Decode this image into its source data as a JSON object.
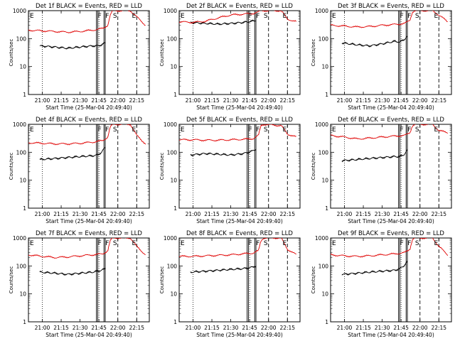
{
  "figure": {
    "ylabel": "Counts/sec",
    "xlabel": "Start Time (25-Mar-04 20:49:40)",
    "time_ticks": [
      "21:00",
      "21:15",
      "21:30",
      "21:45",
      "22:00",
      "22:15"
    ],
    "y_ticks": [
      "1",
      "10",
      "100",
      "1000"
    ],
    "marker_labels": [
      "F",
      "F",
      "S",
      "E"
    ],
    "colors": {
      "events": "#000000",
      "lld": "#e00000"
    }
  },
  "chart_data": [
    {
      "type": "line",
      "title": "Det 1f BLACK = Events, RED = LLD",
      "xlabel": "Start Time (25-Mar-04 20:49:40)",
      "ylabel": "Counts/sec",
      "ylim": [
        1,
        1000
      ],
      "yscale": "log",
      "series": [
        {
          "name": "Events",
          "color": "#000000",
          "x": [
            "20:58",
            "21:10",
            "21:20",
            "21:30",
            "21:40",
            "21:44",
            "21:47",
            "21:50"
          ],
          "values": [
            55,
            50,
            45,
            50,
            55,
            55,
            60,
            70
          ]
        },
        {
          "name": "LLD",
          "color": "#e00000",
          "x": [
            "20:49",
            "21:00",
            "21:10",
            "21:20",
            "21:30",
            "21:40",
            "21:48",
            "21:52",
            "21:54",
            "21:56",
            "22:10",
            "22:15",
            "22:22"
          ],
          "values": [
            200,
            190,
            180,
            170,
            180,
            200,
            230,
            300,
            700,
            1000,
            1000,
            600,
            300
          ]
        }
      ]
    },
    {
      "type": "line",
      "title": "Det 2f BLACK = Events, RED = LLD",
      "xlabel": "Start Time (25-Mar-04 20:49:40)",
      "ylabel": "Counts/sec",
      "ylim": [
        1,
        1000
      ],
      "yscale": "log",
      "series": [
        {
          "name": "Events",
          "color": "#000000",
          "x": [
            "20:58",
            "21:10",
            "21:20",
            "21:30",
            "21:40",
            "21:44",
            "21:47",
            "21:50"
          ],
          "values": [
            380,
            350,
            330,
            350,
            380,
            400,
            420,
            450
          ]
        },
        {
          "name": "LLD",
          "color": "#e00000",
          "x": [
            "20:49",
            "21:00",
            "21:10",
            "21:20",
            "21:30",
            "21:40",
            "21:48",
            "21:52",
            "21:54",
            "21:56",
            "22:10",
            "22:15",
            "22:22"
          ],
          "values": [
            400,
            380,
            420,
            550,
            700,
            750,
            800,
            900,
            1000,
            1000,
            1000,
            500,
            400
          ]
        }
      ]
    },
    {
      "type": "line",
      "title": "Det 3f BLACK = Events, RED = LLD",
      "xlabel": "Start Time (25-Mar-04 20:49:40)",
      "ylabel": "Counts/sec",
      "ylim": [
        1,
        1000
      ],
      "yscale": "log",
      "series": [
        {
          "name": "Events",
          "color": "#000000",
          "x": [
            "20:58",
            "21:10",
            "21:20",
            "21:30",
            "21:40",
            "21:44",
            "21:47",
            "21:50"
          ],
          "values": [
            70,
            60,
            55,
            65,
            80,
            75,
            90,
            120
          ]
        },
        {
          "name": "LLD",
          "color": "#e00000",
          "x": [
            "20:49",
            "21:00",
            "21:10",
            "21:20",
            "21:30",
            "21:40",
            "21:48",
            "21:52",
            "21:54",
            "21:56",
            "22:10",
            "22:15",
            "22:22"
          ],
          "values": [
            300,
            280,
            260,
            270,
            300,
            320,
            350,
            450,
            900,
            1000,
            1000,
            700,
            400
          ]
        }
      ]
    },
    {
      "type": "line",
      "title": "Det 4f BLACK = Events, RED = LLD",
      "xlabel": "Start Time (25-Mar-04 20:49:40)",
      "ylabel": "Counts/sec",
      "ylim": [
        1,
        1000
      ],
      "yscale": "log",
      "series": [
        {
          "name": "Events",
          "color": "#000000",
          "x": [
            "20:58",
            "21:10",
            "21:20",
            "21:30",
            "21:40",
            "21:44",
            "21:47",
            "21:50"
          ],
          "values": [
            55,
            60,
            65,
            70,
            75,
            80,
            100,
            150
          ]
        },
        {
          "name": "LLD",
          "color": "#e00000",
          "x": [
            "20:49",
            "21:00",
            "21:10",
            "21:20",
            "21:30",
            "21:40",
            "21:48",
            "21:52",
            "21:54",
            "21:56",
            "22:10",
            "22:15",
            "22:22"
          ],
          "values": [
            220,
            210,
            200,
            200,
            210,
            230,
            260,
            350,
            800,
            1000,
            1000,
            400,
            200
          ]
        }
      ]
    },
    {
      "type": "line",
      "title": "Det 5f BLACK = Events, RED = LLD",
      "xlabel": "Start Time (25-Mar-04 20:49:40)",
      "ylabel": "Counts/sec",
      "ylim": [
        1,
        1000
      ],
      "yscale": "log",
      "series": [
        {
          "name": "Events",
          "color": "#000000",
          "x": [
            "20:58",
            "21:10",
            "21:20",
            "21:30",
            "21:40",
            "21:44",
            "21:47",
            "21:50"
          ],
          "values": [
            80,
            90,
            85,
            80,
            90,
            100,
            110,
            130
          ]
        },
        {
          "name": "LLD",
          "color": "#e00000",
          "x": [
            "20:49",
            "21:00",
            "21:10",
            "21:20",
            "21:30",
            "21:40",
            "21:48",
            "21:52",
            "21:54",
            "21:56",
            "22:10",
            "22:15",
            "22:22"
          ],
          "values": [
            280,
            280,
            270,
            270,
            280,
            290,
            310,
            400,
            900,
            1000,
            900,
            450,
            350
          ]
        }
      ]
    },
    {
      "type": "line",
      "title": "Det 6f BLACK = Events, RED = LLD",
      "xlabel": "Start Time (25-Mar-04 20:49:40)",
      "ylabel": "Counts/sec",
      "ylim": [
        1,
        1000
      ],
      "yscale": "log",
      "series": [
        {
          "name": "Events",
          "color": "#000000",
          "x": [
            "20:58",
            "21:10",
            "21:20",
            "21:30",
            "21:40",
            "21:44",
            "21:47",
            "21:50"
          ],
          "values": [
            50,
            55,
            60,
            65,
            70,
            70,
            80,
            120
          ]
        },
        {
          "name": "LLD",
          "color": "#e00000",
          "x": [
            "20:49",
            "21:00",
            "21:10",
            "21:20",
            "21:30",
            "21:40",
            "21:48",
            "21:52",
            "21:54",
            "21:56",
            "22:10",
            "22:15",
            "22:22"
          ],
          "values": [
            400,
            350,
            300,
            320,
            350,
            380,
            400,
            500,
            900,
            1000,
            1000,
            600,
            500
          ]
        }
      ]
    },
    {
      "type": "line",
      "title": "Det 7f BLACK = Events, RED = LLD",
      "xlabel": "Start Time (25-Mar-04 20:49:40)",
      "ylabel": "Counts/sec",
      "ylim": [
        1,
        1000
      ],
      "yscale": "log",
      "series": [
        {
          "name": "Events",
          "color": "#000000",
          "x": [
            "20:58",
            "21:10",
            "21:20",
            "21:30",
            "21:40",
            "21:44",
            "21:47",
            "21:50"
          ],
          "values": [
            60,
            55,
            50,
            55,
            60,
            65,
            70,
            80
          ]
        },
        {
          "name": "LLD",
          "color": "#e00000",
          "x": [
            "20:49",
            "21:00",
            "21:10",
            "21:20",
            "21:30",
            "21:40",
            "21:48",
            "21:52",
            "21:54",
            "21:56",
            "22:10",
            "22:15",
            "22:22"
          ],
          "values": [
            250,
            220,
            200,
            210,
            230,
            250,
            270,
            350,
            800,
            1000,
            1000,
            500,
            250
          ]
        }
      ]
    },
    {
      "type": "line",
      "title": "Det 8f BLACK = Events, RED = LLD",
      "xlabel": "Start Time (25-Mar-04 20:49:40)",
      "ylabel": "Counts/sec",
      "ylim": [
        1,
        1000
      ],
      "yscale": "log",
      "series": [
        {
          "name": "Events",
          "color": "#000000",
          "x": [
            "20:58",
            "21:10",
            "21:20",
            "21:30",
            "21:40",
            "21:44",
            "21:47",
            "21:50"
          ],
          "values": [
            60,
            65,
            70,
            75,
            80,
            85,
            90,
            100
          ]
        },
        {
          "name": "LLD",
          "color": "#e00000",
          "x": [
            "20:49",
            "21:00",
            "21:10",
            "21:20",
            "21:30",
            "21:40",
            "21:48",
            "21:52",
            "21:54",
            "21:56",
            "22:10",
            "22:15",
            "22:22"
          ],
          "values": [
            220,
            220,
            230,
            240,
            250,
            270,
            290,
            350,
            800,
            1000,
            1000,
            400,
            250
          ]
        }
      ]
    },
    {
      "type": "line",
      "title": "Det 9f BLACK = Events, RED = LLD",
      "xlabel": "Start Time (25-Mar-04 20:49:40)",
      "ylabel": "Counts/sec",
      "ylim": [
        1,
        1000
      ],
      "yscale": "log",
      "series": [
        {
          "name": "Events",
          "color": "#000000",
          "x": [
            "20:58",
            "21:10",
            "21:20",
            "21:30",
            "21:40",
            "21:44",
            "21:47",
            "21:50"
          ],
          "values": [
            50,
            55,
            60,
            65,
            70,
            80,
            100,
            140
          ]
        },
        {
          "name": "LLD",
          "color": "#e00000",
          "x": [
            "20:49",
            "21:00",
            "21:10",
            "21:20",
            "21:30",
            "21:40",
            "21:48",
            "21:52",
            "21:54",
            "21:56",
            "22:10",
            "22:15",
            "22:22"
          ],
          "values": [
            250,
            230,
            220,
            230,
            250,
            270,
            300,
            400,
            900,
            1000,
            1000,
            500,
            250
          ]
        }
      ]
    }
  ],
  "markers": {
    "dotted_times": [
      "21:00",
      "21:45"
    ],
    "solid_times": [
      "21:43",
      "21:44",
      "21:49",
      "21:50"
    ],
    "dashed_times": [
      "22:00",
      "22:15"
    ],
    "label_times": [
      "21:43",
      "21:49",
      "21:55",
      "22:10"
    ]
  },
  "xrange": [
    "20:49",
    "22:25"
  ]
}
